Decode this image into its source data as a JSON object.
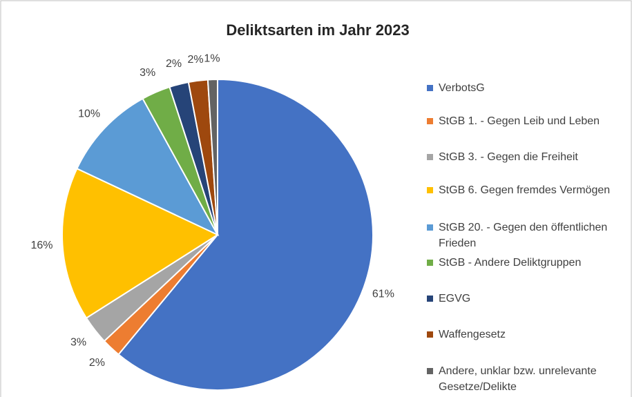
{
  "chart_data": {
    "type": "pie",
    "title": "Deliktsarten im Jahr 2023",
    "categories": [
      "VerbotsG",
      "StGB 1. - Gegen Leib und Leben",
      "StGB 3. - Gegen die Freiheit",
      "StGB 6. Gegen fremdes Vermögen",
      "StGB 20. - Gegen den öffentlichen Frieden",
      "StGB - Andere Deliktgruppen",
      "EGVG",
      "Waffengesetz",
      "Andere, unklar bzw. unrelevante Gesetze/Delikte"
    ],
    "values": [
      61,
      2,
      3,
      16,
      10,
      3,
      2,
      2,
      1
    ],
    "value_labels": [
      "61%",
      "2%",
      "3%",
      "16%",
      "10%",
      "3%",
      "2%",
      "2%",
      "1%"
    ],
    "colors": [
      "#4472c4",
      "#ed7d31",
      "#a5a5a5",
      "#ffc000",
      "#5b9bd5",
      "#70ad47",
      "#264478",
      "#9e480e",
      "#636363"
    ],
    "legend": "right"
  }
}
